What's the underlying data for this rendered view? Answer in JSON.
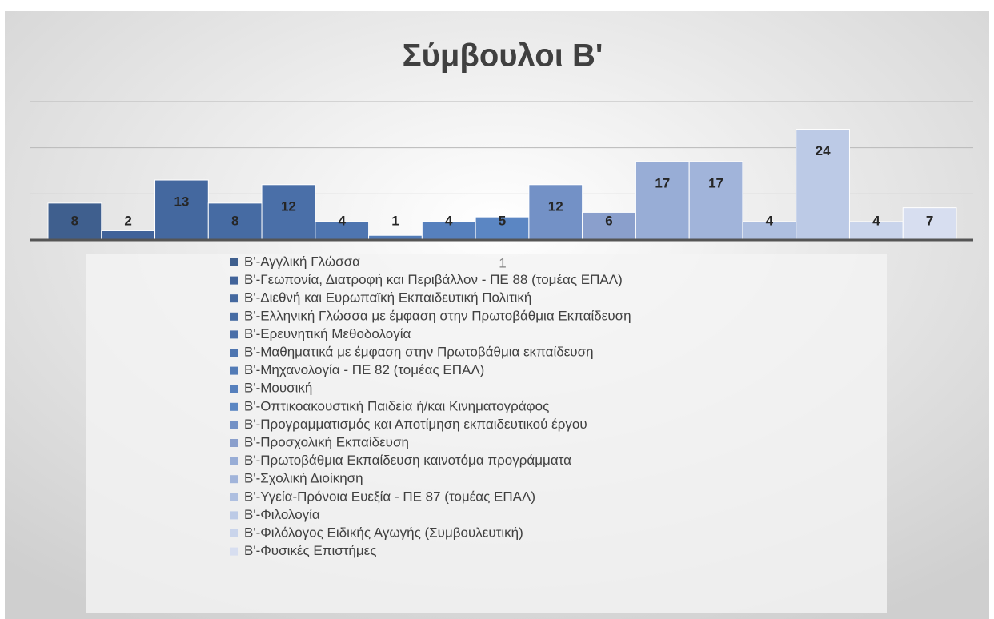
{
  "chart_data": {
    "type": "bar",
    "title": "Σύμβουλοι Β'",
    "categories": [
      "1"
    ],
    "ylim": [
      0,
      30
    ],
    "yticks": [
      0,
      10,
      20,
      30
    ],
    "grid": true,
    "legend": "bottom",
    "series": [
      {
        "name": "Β'-Αγγλική Γλώσσα",
        "color": "#3f5f8e",
        "values": [
          8
        ]
      },
      {
        "name": "Β'-Γεωπονία, Διατροφή και Περιβάλλον - ΠΕ 88 (τομέας ΕΠΑΛ)",
        "color": "#41639a",
        "values": [
          2
        ]
      },
      {
        "name": "Β'-Διεθνή και Ευρωπαϊκή Εκπαιδευτική Πολιτική",
        "color": "#44689f",
        "values": [
          13
        ]
      },
      {
        "name": "Β'-Ελληνική Γλώσσα με έμφαση στην Πρωτοβάθμια Εκπαίδευση",
        "color": "#466ba3",
        "values": [
          8
        ]
      },
      {
        "name": "Β'-Ερευνητική Μεθοδολογία",
        "color": "#4a6fa8",
        "values": [
          12
        ]
      },
      {
        "name": "Β'-Μαθηματικά με έμφαση στην Πρωτοβάθμια εκπαίδευση",
        "color": "#4e75b0",
        "values": [
          4
        ]
      },
      {
        "name": "Β'-Μηχανολογία - ΠΕ 82 (τομέας ΕΠΑΛ)",
        "color": "#527bb6",
        "values": [
          1
        ]
      },
      {
        "name": "Β'-Μουσική",
        "color": "#5680bd",
        "values": [
          4
        ]
      },
      {
        "name": "Β'-Οπτικοακουστική Παιδεία ή/και Κινηματογράφος",
        "color": "#5b86c3",
        "values": [
          5
        ]
      },
      {
        "name": "Β'-Προγραμματισμός και Αποτίμηση εκπαιδευτικού έργου",
        "color": "#7391c6",
        "values": [
          12
        ]
      },
      {
        "name": "Β'-Προσχολική Εκπαίδευση",
        "color": "#8a9fcc",
        "values": [
          6
        ]
      },
      {
        "name": "Β'-Πρωτοβάθμια Εκπαίδευση  καινοτόμα προγράμματα",
        "color": "#98add6",
        "values": [
          17
        ]
      },
      {
        "name": "Β'-Σχολική Διοίκηση",
        "color": "#a1b4da",
        "values": [
          17
        ]
      },
      {
        "name": "Β'-Υγεία-Πρόνοια Ευεξία - ΠΕ 87 (τομέας ΕΠΑΛ)",
        "color": "#aebfe0",
        "values": [
          4
        ]
      },
      {
        "name": "Β'-Φιλολογία",
        "color": "#bccae6",
        "values": [
          24
        ]
      },
      {
        "name": "Β'-Φιλόλογος Ειδικής Αγωγής (Συμβουλευτική)",
        "color": "#c9d4eb",
        "values": [
          4
        ]
      },
      {
        "name": "Β'-Φυσικές Επιστήμες",
        "color": "#d7def0",
        "values": [
          7
        ]
      }
    ]
  }
}
